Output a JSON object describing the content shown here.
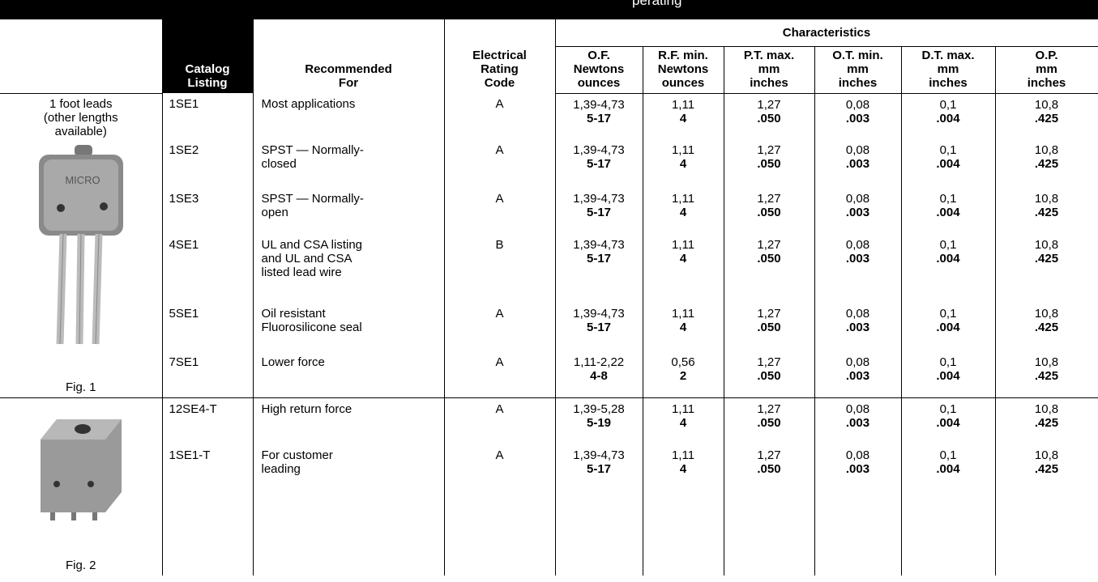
{
  "header": {
    "title": "perating"
  },
  "table": {
    "characteristics_label": "Characteristics",
    "columns": [
      [
        "Catalog",
        "Listing"
      ],
      [
        "Recommended",
        "For"
      ],
      [
        "Electrical",
        "Rating",
        "Code"
      ],
      [
        "O.F.",
        "Newtons",
        "ounces"
      ],
      [
        "R.F. min.",
        "Newtons",
        "ounces"
      ],
      [
        "P.T. max.",
        "mm",
        "inches"
      ],
      [
        "O.T. min.",
        "mm",
        "inches"
      ],
      [
        "D.T. max.",
        "mm",
        "inches"
      ],
      [
        "O.P.",
        "mm",
        "inches"
      ]
    ],
    "groups": [
      {
        "note": [
          "1 foot leads",
          "(other lengths",
          "available)"
        ],
        "figure": "Fig. 1",
        "rows": [
          {
            "catalog": "1SE1",
            "recommended": [
              "Most applications"
            ],
            "rating": "A",
            "of": [
              "1,39-4,73",
              "5-17"
            ],
            "rf": [
              "1,11",
              "4"
            ],
            "pt": [
              "1,27",
              ".050"
            ],
            "ot": [
              "0,08",
              ".003"
            ],
            "dt": [
              "0,1",
              ".004"
            ],
            "op": [
              "10,8",
              ".425"
            ]
          },
          {
            "catalog": "1SE2",
            "recommended": [
              "SPST — Normally-",
              "closed"
            ],
            "rating": "A",
            "of": [
              "1,39-4,73",
              "5-17"
            ],
            "rf": [
              "1,11",
              "4"
            ],
            "pt": [
              "1,27",
              ".050"
            ],
            "ot": [
              "0,08",
              ".003"
            ],
            "dt": [
              "0,1",
              ".004"
            ],
            "op": [
              "10,8",
              ".425"
            ]
          },
          {
            "catalog": "1SE3",
            "recommended": [
              "SPST — Normally-",
              "open"
            ],
            "rating": "A",
            "of": [
              "1,39-4,73",
              "5-17"
            ],
            "rf": [
              "1,11",
              "4"
            ],
            "pt": [
              "1,27",
              ".050"
            ],
            "ot": [
              "0,08",
              ".003"
            ],
            "dt": [
              "0,1",
              ".004"
            ],
            "op": [
              "10,8",
              ".425"
            ]
          },
          {
            "catalog": "4SE1",
            "recommended": [
              "UL and CSA listing",
              "and UL and CSA",
              "listed lead wire"
            ],
            "rating": "B",
            "of": [
              "1,39-4,73",
              "5-17"
            ],
            "rf": [
              "1,11",
              "4"
            ],
            "pt": [
              "1,27",
              ".050"
            ],
            "ot": [
              "0,08",
              ".003"
            ],
            "dt": [
              "0,1",
              ".004"
            ],
            "op": [
              "10,8",
              ".425"
            ]
          },
          {
            "catalog": "5SE1",
            "recommended": [
              "Oil resistant",
              "Fluorosilicone seal"
            ],
            "rating": "A",
            "of": [
              "1,39-4,73",
              "5-17"
            ],
            "rf": [
              "1,11",
              "4"
            ],
            "pt": [
              "1,27",
              ".050"
            ],
            "ot": [
              "0,08",
              ".003"
            ],
            "dt": [
              "0,1",
              ".004"
            ],
            "op": [
              "10,8",
              ".425"
            ]
          },
          {
            "catalog": "7SE1",
            "recommended": [
              "Lower force"
            ],
            "rating": "A",
            "of": [
              "1,11-2,22",
              "4-8"
            ],
            "rf": [
              "0,56",
              "2"
            ],
            "pt": [
              "1,27",
              ".050"
            ],
            "ot": [
              "0,08",
              ".003"
            ],
            "dt": [
              "0,1",
              ".004"
            ],
            "op": [
              "10,8",
              ".425"
            ]
          }
        ]
      },
      {
        "figure": "Fig. 2",
        "rows": [
          {
            "catalog": "12SE4-T",
            "recommended": [
              "High return force"
            ],
            "rating": "A",
            "of": [
              "1,39-5,28",
              "5-19"
            ],
            "rf": [
              "1,11",
              "4"
            ],
            "pt": [
              "1,27",
              ".050"
            ],
            "ot": [
              "0,08",
              ".003"
            ],
            "dt": [
              "0,1",
              ".004"
            ],
            "op": [
              "10,8",
              ".425"
            ]
          },
          {
            "catalog": "1SE1-T",
            "recommended": [
              "For customer",
              "leading"
            ],
            "rating": "A",
            "of": [
              "1,39-4,73",
              "5-17"
            ],
            "rf": [
              "1,11",
              "4"
            ],
            "pt": [
              "1,27",
              ".050"
            ],
            "ot": [
              "0,08",
              ".003"
            ],
            "dt": [
              "0,1",
              ".004"
            ],
            "op": [
              "10,8",
              ".425"
            ]
          }
        ]
      }
    ]
  }
}
